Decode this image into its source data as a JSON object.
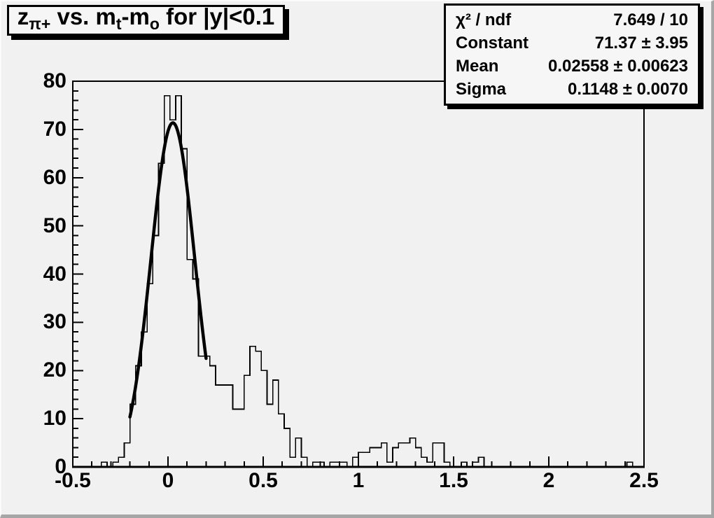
{
  "app": {
    "name": "ROOT histogram canvas"
  },
  "title": {
    "plain": "z_{pi+} vs. m_{t}-m_{o} for |y|<0.1",
    "segments": [
      {
        "text": "z",
        "sub": false
      },
      {
        "text": "π+",
        "sub": true
      },
      {
        "text": " vs. m",
        "sub": false
      },
      {
        "text": "t",
        "sub": true
      },
      {
        "text": "-m",
        "sub": false
      },
      {
        "text": "o",
        "sub": true
      },
      {
        "text": " for |y|<0.1",
        "sub": false
      }
    ]
  },
  "stats": {
    "rows": [
      {
        "label": "χ² / ndf",
        "value": "7.649 / 10"
      },
      {
        "label": "Constant",
        "value": "71.37 ± 3.95"
      },
      {
        "label": "Mean",
        "value": "0.02558 ± 0.00623"
      },
      {
        "label": "Sigma",
        "value": "0.1148 ± 0.0070"
      }
    ]
  },
  "colors": {
    "background": "#f1f1f1",
    "box_background": "#f6f6f6",
    "line": "#000000",
    "text": "#000000",
    "shadow": "#000000"
  },
  "chart_data": {
    "type": "bar",
    "subtype": "histogram-with-gaussian-fit",
    "title": "z_{π+} vs. m_{t}-m_{o} for |y|<0.1",
    "xlabel": "",
    "ylabel": "",
    "x_range": [
      -0.5,
      2.5
    ],
    "y_range": [
      0,
      80
    ],
    "grid": false,
    "legend": false,
    "x_ticks": [
      {
        "v": -0.5,
        "label": "-0.5"
      },
      {
        "v": 0,
        "label": "0"
      },
      {
        "v": 0.5,
        "label": "0.5"
      },
      {
        "v": 1,
        "label": "1"
      },
      {
        "v": 1.5,
        "label": "1.5"
      },
      {
        "v": 2,
        "label": "2"
      },
      {
        "v": 2.5,
        "label": "2.5"
      }
    ],
    "y_ticks": [
      {
        "v": 0,
        "label": "0"
      },
      {
        "v": 10,
        "label": "10"
      },
      {
        "v": 20,
        "label": "20"
      },
      {
        "v": 30,
        "label": "30"
      },
      {
        "v": 40,
        "label": "40"
      },
      {
        "v": 50,
        "label": "50"
      },
      {
        "v": 60,
        "label": "60"
      },
      {
        "v": 70,
        "label": "70"
      },
      {
        "v": 80,
        "label": "80"
      }
    ],
    "x_minor_step": 0.1,
    "y_minor_step": 2,
    "bins": {
      "start": -0.5,
      "width": 0.03,
      "values": [
        0,
        0,
        0,
        0,
        0,
        1,
        0,
        1,
        2,
        5,
        13,
        21,
        28,
        38,
        48,
        63,
        77,
        72,
        77,
        66,
        43,
        39,
        23,
        23,
        21,
        17,
        17,
        17,
        12,
        12,
        19,
        25,
        24,
        20,
        13,
        18,
        11,
        8,
        2,
        6,
        2,
        0,
        1,
        1,
        0,
        1,
        1,
        1,
        0,
        2,
        3,
        3,
        4,
        4,
        5,
        1,
        4,
        5,
        5,
        6,
        4,
        2,
        1,
        5,
        5,
        1,
        0,
        0,
        1,
        0,
        1,
        2,
        0,
        0,
        0,
        0,
        0,
        0,
        0,
        0,
        0,
        0,
        0,
        0,
        0,
        0,
        0,
        0,
        0,
        0,
        0,
        0,
        0,
        0,
        0,
        0,
        0,
        1,
        0,
        0
      ]
    },
    "fit": {
      "type": "gaussian",
      "constant": 71.37,
      "constant_error": 3.95,
      "mean": 0.02558,
      "mean_error": 0.00623,
      "sigma": 0.1148,
      "sigma_error": 0.007,
      "chi2": 7.649,
      "ndf": 10,
      "draw_range": [
        -0.2,
        0.2
      ]
    }
  }
}
